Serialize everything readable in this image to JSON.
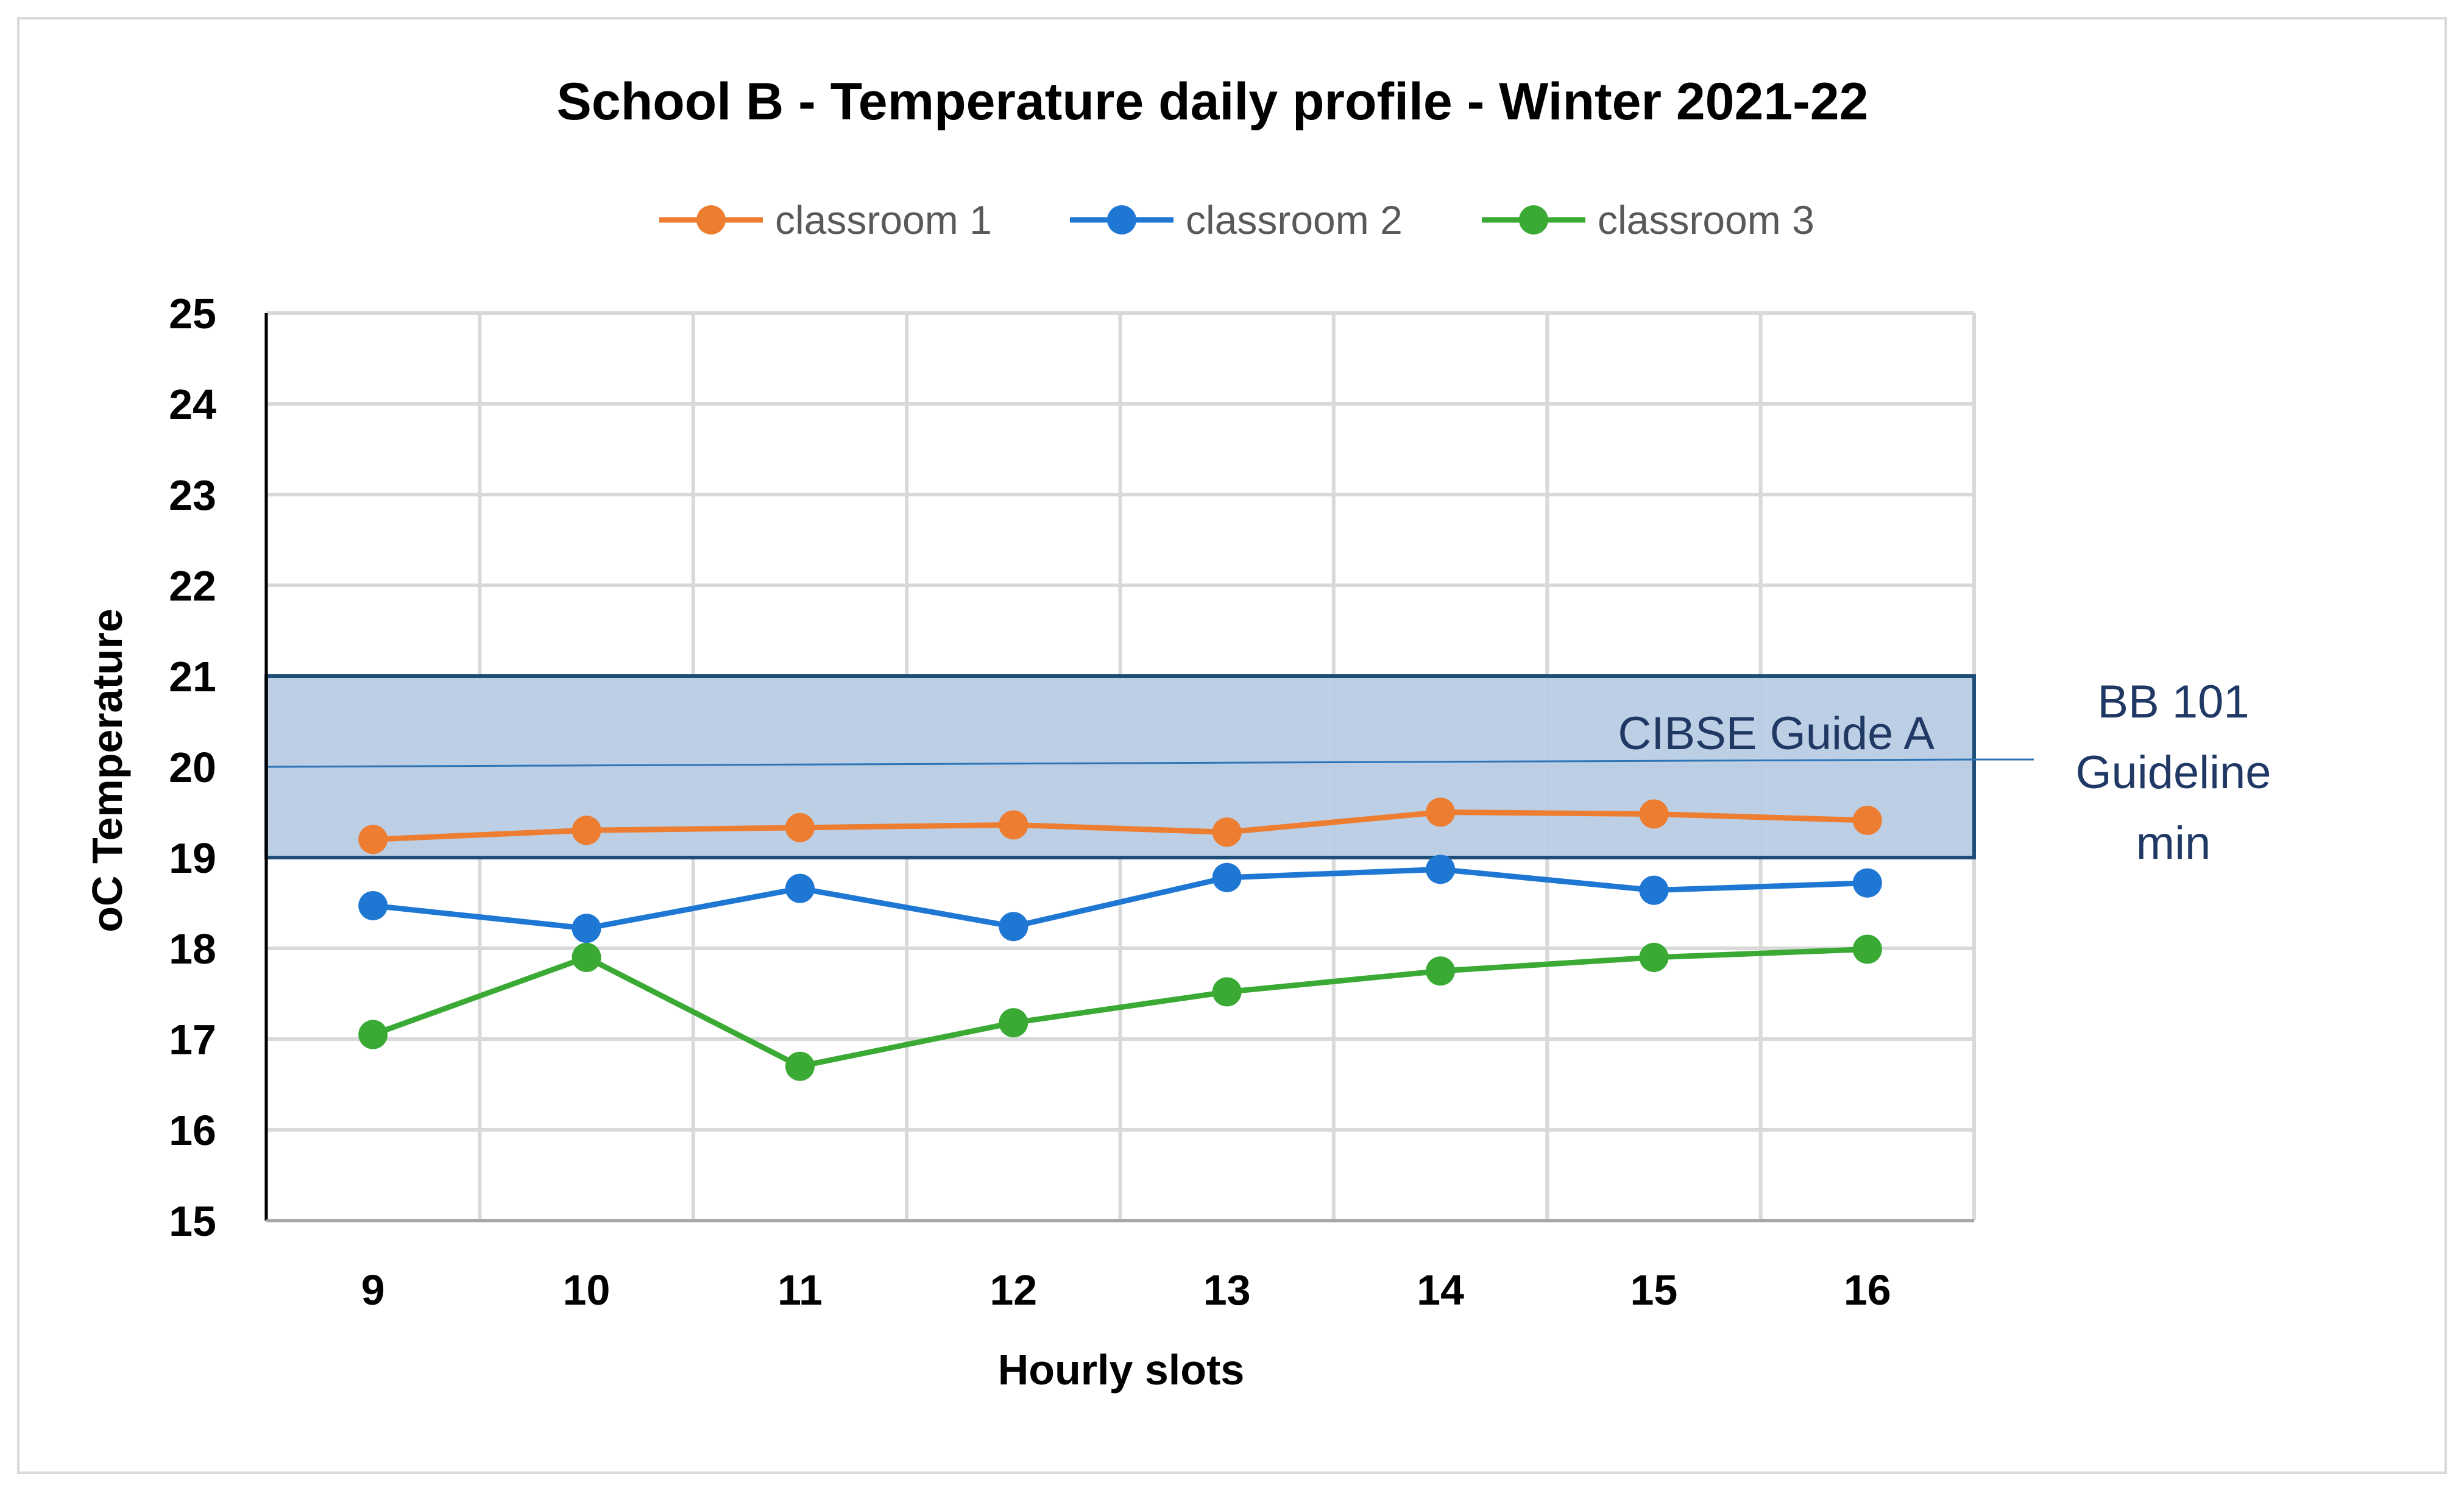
{
  "chart_data": {
    "type": "line",
    "title": "School B - Temperature daily profile - Winter 2021-22",
    "xlabel": "Hourly slots",
    "ylabel": "oC Temperature",
    "categories": [
      "9",
      "10",
      "11",
      "12",
      "13",
      "14",
      "15",
      "16"
    ],
    "ylim": [
      15,
      25
    ],
    "yticks": [
      "15",
      "16",
      "17",
      "18",
      "19",
      "20",
      "21",
      "22",
      "23",
      "24",
      "25"
    ],
    "grid": true,
    "legend_position": "top",
    "series": [
      {
        "name": "classroom 1",
        "color": "#ed7d31",
        "values": [
          19.2,
          19.3,
          19.33,
          19.36,
          19.28,
          19.5,
          19.48,
          19.41
        ]
      },
      {
        "name": "classroom 2",
        "color": "#1f77d4",
        "values": [
          18.47,
          18.22,
          18.66,
          18.24,
          18.78,
          18.87,
          18.64,
          18.72
        ]
      },
      {
        "name": "classroom 3",
        "color": "#3aaa35",
        "values": [
          17.05,
          17.9,
          16.7,
          17.18,
          17.52,
          17.75,
          17.9,
          17.99
        ]
      }
    ],
    "band": {
      "label": "CIBSE Guide A",
      "y_min": 19,
      "y_max": 21,
      "fill": "#b8cce4",
      "stroke": "#1f4e79"
    },
    "reference_line": {
      "label_lines": [
        "BB 101",
        "Guideline",
        "min"
      ],
      "y": 20
    }
  }
}
